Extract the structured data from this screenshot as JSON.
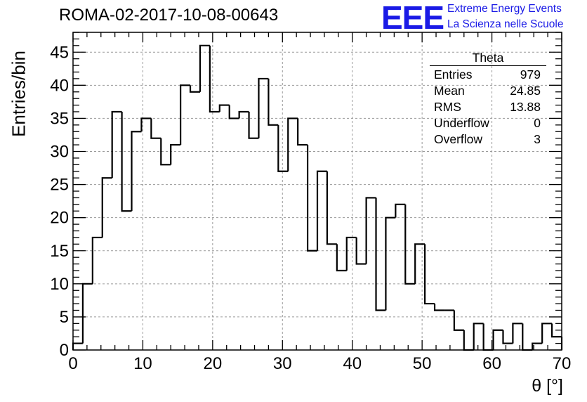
{
  "header": {
    "run_title": "ROMA-02-2017-10-08-00643"
  },
  "logo": {
    "mark": "EEE",
    "line1": "Extreme Energy Events",
    "line2": "La Scienza nelle Scuole",
    "color": "#1a1ae6"
  },
  "stats_box": {
    "title": "Theta",
    "rows": [
      {
        "label": "Entries",
        "value": "979"
      },
      {
        "label": "Mean",
        "value": "24.85"
      },
      {
        "label": "RMS",
        "value": "13.88"
      },
      {
        "label": "Underflow",
        "value": "0"
      },
      {
        "label": "Overflow",
        "value": "3"
      }
    ]
  },
  "chart_data": {
    "type": "bar",
    "style": "step-histogram",
    "title": "ROMA-02-2017-10-08-00643",
    "xlabel": "θ [°]",
    "ylabel": "Entries/bin",
    "xlim": [
      0,
      70
    ],
    "ylim": [
      0,
      48
    ],
    "bin_width": 1.4,
    "bin_edges_start": 0,
    "values": [
      1,
      10,
      17,
      26,
      36,
      21,
      33,
      35,
      32,
      28,
      31,
      40,
      39,
      46,
      36,
      37,
      35,
      36,
      32,
      41,
      34,
      27,
      35,
      31,
      15,
      27,
      16,
      12,
      17,
      13,
      23,
      6,
      20,
      22,
      10,
      16,
      7,
      6,
      6,
      3,
      0,
      4,
      0,
      3,
      1,
      4,
      0,
      1,
      4,
      2
    ],
    "x_ticks": [
      "0",
      "10",
      "20",
      "30",
      "40",
      "50",
      "60",
      "70"
    ],
    "y_ticks": [
      "0",
      "5",
      "10",
      "15",
      "20",
      "25",
      "30",
      "35",
      "40",
      "45"
    ],
    "grid": true,
    "line_color": "#000000",
    "grid_color": "#9a9a9a"
  }
}
